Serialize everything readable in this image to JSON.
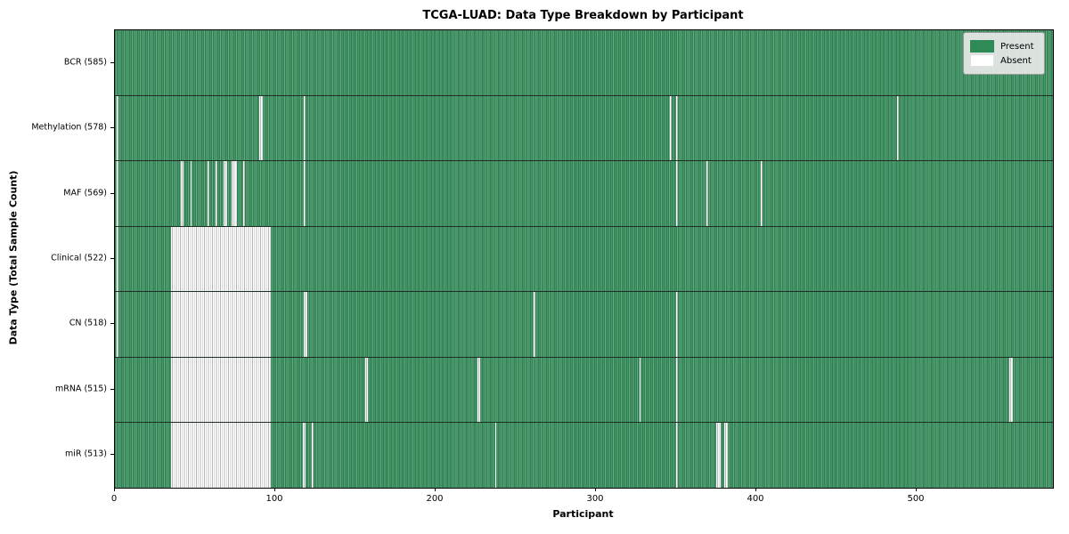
{
  "chart_data": {
    "type": "heatmap",
    "title": "TCGA-LUAD: Data Type Breakdown by Participant",
    "xlabel": "Participant",
    "ylabel": "Data Type (Total Sample Count)",
    "total_participants": 585,
    "x_range": [
      0,
      585
    ],
    "x_ticks": [
      0,
      100,
      200,
      300,
      400,
      500
    ],
    "grid": false,
    "legend_position": "upper right",
    "legend": [
      {
        "label": "Present",
        "color": "#2e8b57"
      },
      {
        "label": "Absent",
        "color": "#ffffff"
      }
    ],
    "colors": {
      "present_fill": "#2e8b57",
      "present_edge_light": "#66a983",
      "absent_fill": "#ffffff",
      "absent_edge_gray": "#b7b7b7",
      "row_separator": "#1f2d22",
      "legend_bg": "#e8e8e8"
    },
    "rows": [
      {
        "label": "BCR (585)",
        "data_type": "BCR",
        "present_count": 585,
        "absent_ranges": []
      },
      {
        "label": "Methylation (578)",
        "data_type": "Methylation",
        "present_count": 578,
        "absent_ranges": [
          [
            1,
            1
          ],
          [
            90,
            91
          ],
          [
            118,
            118
          ],
          [
            346,
            346
          ],
          [
            350,
            350
          ],
          [
            488,
            488
          ]
        ]
      },
      {
        "label": "MAF (569)",
        "data_type": "MAF",
        "present_count": 569,
        "absent_ranges": [
          [
            1,
            1
          ],
          [
            41,
            42
          ],
          [
            47,
            47
          ],
          [
            58,
            58
          ],
          [
            63,
            63
          ],
          [
            68,
            69
          ],
          [
            73,
            75
          ],
          [
            80,
            80
          ],
          [
            118,
            118
          ],
          [
            350,
            350
          ],
          [
            369,
            369
          ],
          [
            403,
            403
          ]
        ]
      },
      {
        "label": "Clinical (522)",
        "data_type": "Clinical",
        "present_count": 522,
        "absent_ranges": [
          [
            1,
            1
          ],
          [
            35,
            96
          ]
        ]
      },
      {
        "label": "CN (518)",
        "data_type": "CN",
        "present_count": 518,
        "absent_ranges": [
          [
            1,
            1
          ],
          [
            35,
            96
          ],
          [
            118,
            119
          ],
          [
            261,
            261
          ],
          [
            350,
            350
          ]
        ]
      },
      {
        "label": "mRNA (515)",
        "data_type": "mRNA",
        "present_count": 515,
        "absent_ranges": [
          [
            35,
            96
          ],
          [
            156,
            157
          ],
          [
            226,
            227
          ],
          [
            327,
            327
          ],
          [
            350,
            350
          ],
          [
            558,
            559
          ]
        ]
      },
      {
        "label": "miR (513)",
        "data_type": "miR",
        "present_count": 513,
        "absent_ranges": [
          [
            35,
            96
          ],
          [
            117,
            118
          ],
          [
            123,
            123
          ],
          [
            237,
            237
          ],
          [
            350,
            350
          ],
          [
            375,
            377
          ],
          [
            380,
            381
          ]
        ]
      }
    ]
  }
}
